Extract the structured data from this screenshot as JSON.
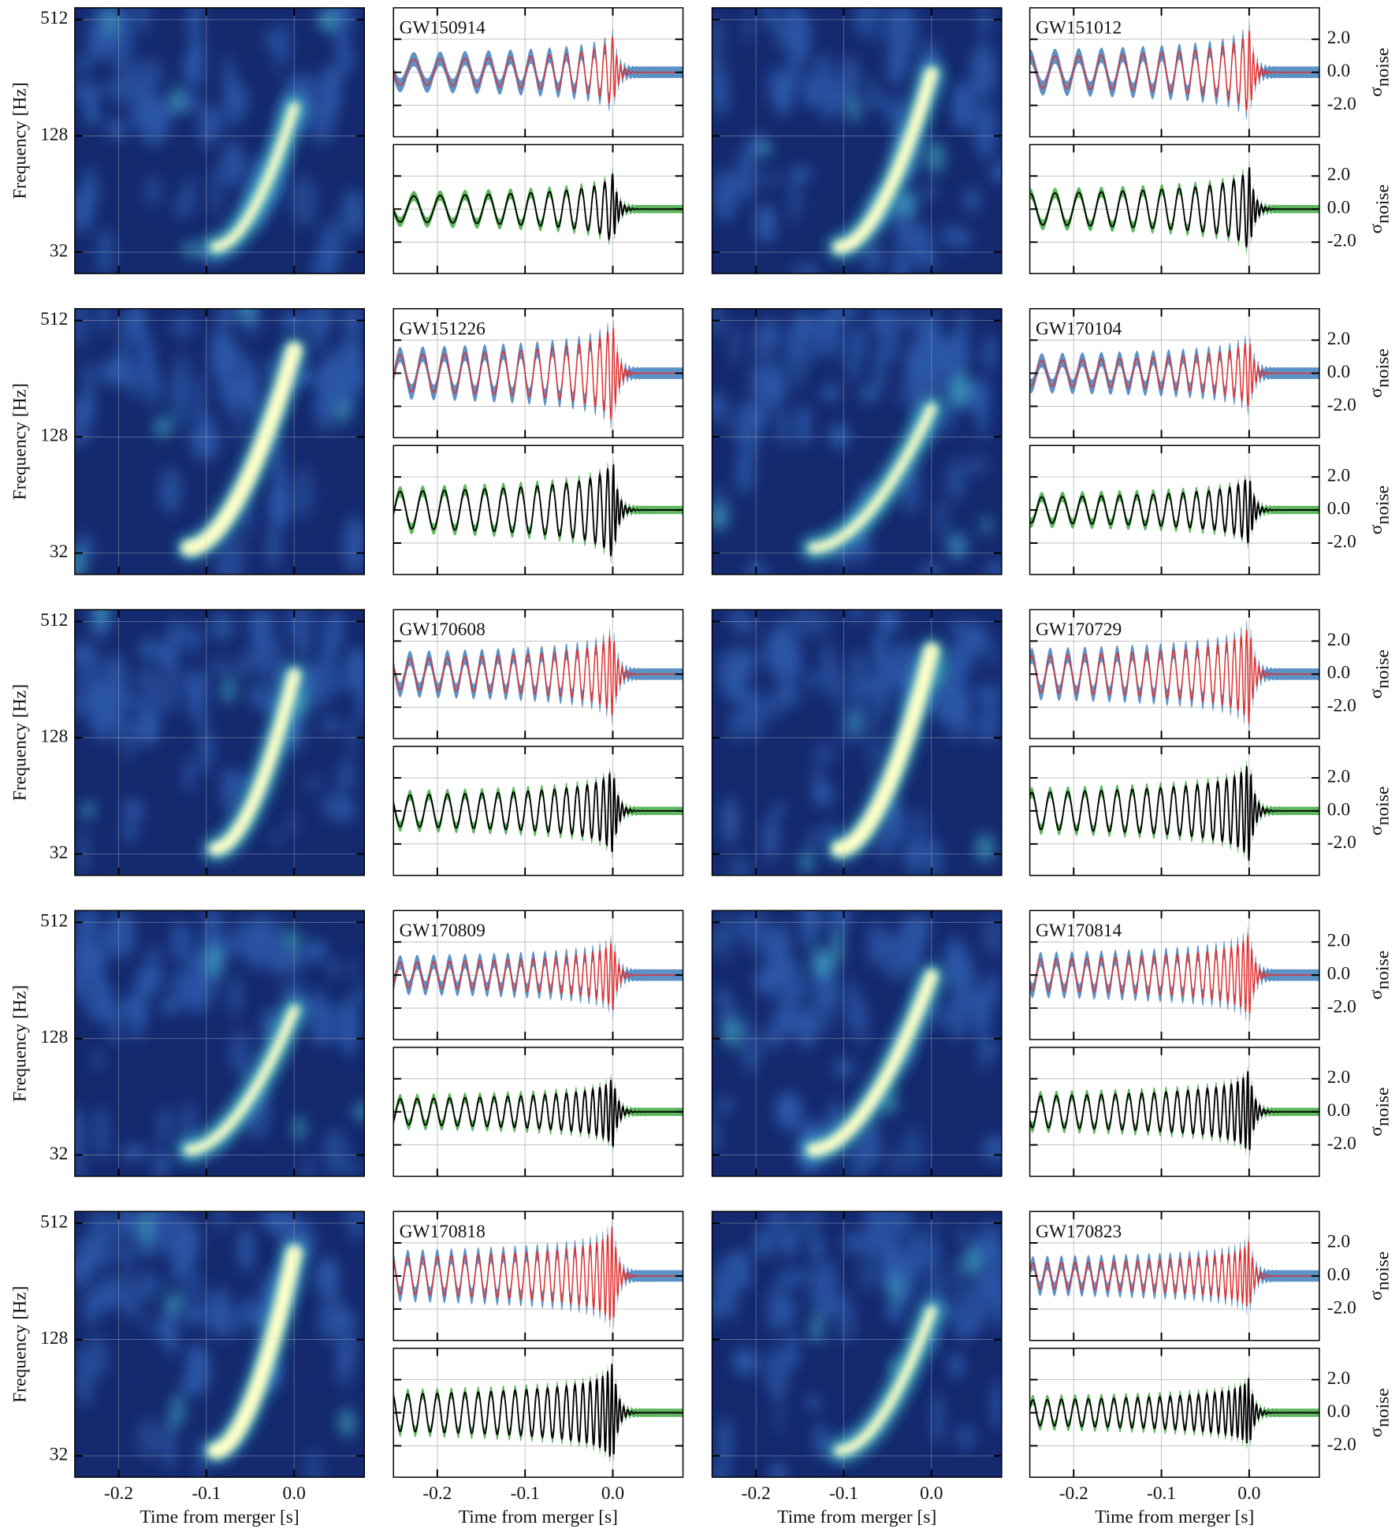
{
  "chart_data": {
    "type": "spectrogram-waveform-grid",
    "events": [
      "GW150914",
      "GW151012",
      "GW151226",
      "GW170104",
      "GW170608",
      "GW170729",
      "GW170809",
      "GW170814",
      "GW170818",
      "GW170823"
    ],
    "xlabel": "Time from merger [s]",
    "xlim": [
      -0.25,
      0.08
    ],
    "xticks": [
      -0.2,
      -0.1,
      {
        "value": 0,
        "label": "0.0"
      }
    ],
    "grid": true,
    "spectrogram": {
      "ylabel": "Frequency [Hz]",
      "ylim": [
        24.8,
        589
      ],
      "yticks": [
        32,
        128,
        512
      ],
      "log_scale": true,
      "colormap": [
        "#14296e",
        "#2c57a8",
        "#44b8c9",
        "#ffffc8"
      ]
    },
    "waveform": {
      "ylabel": {
        "symbol": "σ",
        "subscript": "noise"
      },
      "ylim": [
        -3.9,
        3.9
      ],
      "yticks": [
        {
          "value": 2,
          "label": "2.0"
        },
        {
          "value": 0,
          "label": "0.0"
        },
        {
          "value": -2,
          "label": "-2.0"
        }
      ],
      "colors": {
        "band_top": "#4a86c0",
        "line_top": "#e03030",
        "band_bottom": "#4cae4c",
        "line_bottom": "#000000"
      }
    }
  }
}
